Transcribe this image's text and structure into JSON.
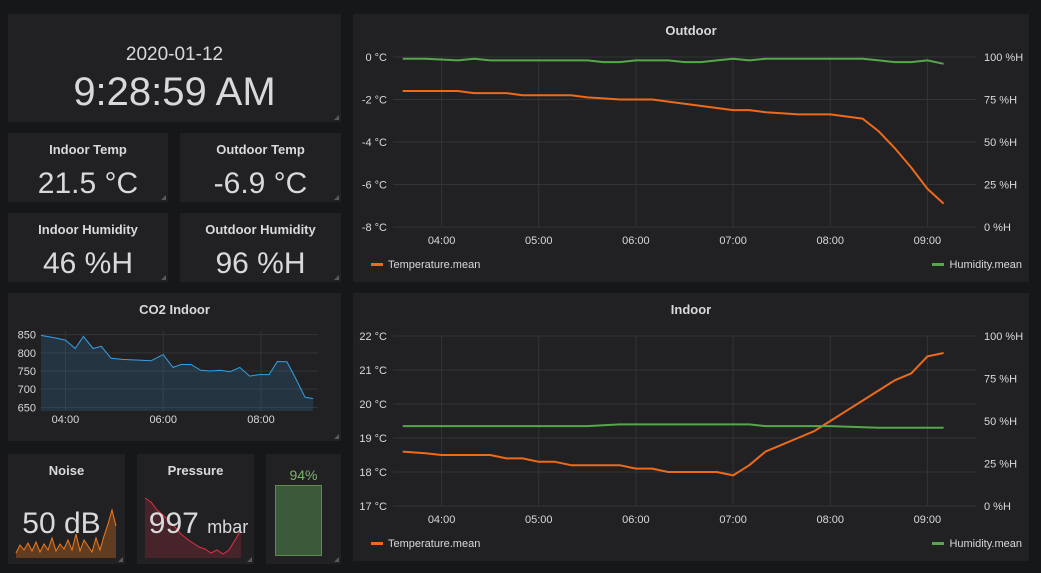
{
  "clock": {
    "date": "2020-01-12",
    "time": "9:28:59 AM"
  },
  "stats": {
    "indoor_temp": {
      "title": "Indoor Temp",
      "value": "21.5 °C"
    },
    "outdoor_temp": {
      "title": "Outdoor Temp",
      "value": "-6.9 °C"
    },
    "indoor_humidity": {
      "title": "Indoor Humidity",
      "value": "46 %H"
    },
    "outdoor_humidity": {
      "title": "Outdoor Humidity",
      "value": "96 %H"
    },
    "noise": {
      "title": "Noise",
      "value": "50 dB"
    },
    "pressure": {
      "title": "Pressure",
      "value": "997",
      "unit": "mbar"
    },
    "gauge": {
      "value": "94%",
      "fraction": 0.94
    }
  },
  "colors": {
    "background": "#161719",
    "panel": "#212124",
    "temperature": "#ed6a1a",
    "humidity": "#56a64b",
    "co2": "#33a2e5",
    "noise": "#f2791a",
    "pressure": "#e02f44",
    "gauge": "#7eb26d"
  },
  "chart_data": [
    {
      "type": "line",
      "title": "Outdoor",
      "x_ticks": [
        "04:00",
        "05:00",
        "06:00",
        "07:00",
        "08:00",
        "09:00"
      ],
      "x_range": [
        "03:30",
        "09:30"
      ],
      "left_axis": {
        "ticks": [
          "0 °C",
          "-2 °C",
          "-4 °C",
          "-6 °C",
          "-8 °C"
        ],
        "range": [
          -8,
          0
        ]
      },
      "right_axis": {
        "ticks": [
          "100 %H",
          "75 %H",
          "50 %H",
          "25 %H",
          "0 %H"
        ],
        "range": [
          0,
          100
        ]
      },
      "legend": {
        "left": "Temperature.mean",
        "right": "Humidity.mean"
      },
      "grid": true,
      "series": [
        {
          "name": "Temperature.mean",
          "axis": "left",
          "x": [
            "03:36",
            "03:50",
            "04:10",
            "04:20",
            "04:30",
            "04:40",
            "04:50",
            "05:00",
            "05:10",
            "05:20",
            "05:30",
            "05:40",
            "05:50",
            "06:00",
            "06:10",
            "06:20",
            "06:30",
            "06:40",
            "06:50",
            "07:00",
            "07:10",
            "07:20",
            "07:30",
            "07:40",
            "07:50",
            "08:00",
            "08:10",
            "08:20",
            "08:30",
            "08:40",
            "08:50",
            "09:00",
            "09:10"
          ],
          "values": [
            -1.6,
            -1.6,
            -1.6,
            -1.7,
            -1.7,
            -1.7,
            -1.8,
            -1.8,
            -1.8,
            -1.8,
            -1.9,
            -1.95,
            -2.0,
            -2.0,
            -2.0,
            -2.1,
            -2.2,
            -2.3,
            -2.4,
            -2.5,
            -2.5,
            -2.6,
            -2.65,
            -2.7,
            -2.7,
            -2.7,
            -2.8,
            -2.9,
            -3.5,
            -4.3,
            -5.2,
            -6.2,
            -6.9
          ]
        },
        {
          "name": "Humidity.mean",
          "axis": "right",
          "x": [
            "03:36",
            "03:50",
            "04:10",
            "04:20",
            "04:30",
            "04:40",
            "04:50",
            "05:00",
            "05:10",
            "05:20",
            "05:30",
            "05:40",
            "05:50",
            "06:00",
            "06:10",
            "06:20",
            "06:30",
            "06:40",
            "06:50",
            "07:00",
            "07:10",
            "07:20",
            "07:30",
            "07:40",
            "07:50",
            "08:00",
            "08:10",
            "08:20",
            "08:30",
            "08:40",
            "08:50",
            "09:00",
            "09:10"
          ],
          "values": [
            99,
            99,
            98,
            99,
            98,
            98,
            98,
            98,
            98,
            98,
            98,
            97,
            97,
            98,
            98,
            98,
            97,
            97,
            98,
            99,
            98,
            99,
            99,
            99,
            99,
            99,
            99,
            99,
            98,
            97,
            97,
            98,
            96
          ]
        }
      ]
    },
    {
      "type": "line",
      "title": "Indoor",
      "x_ticks": [
        "04:00",
        "05:00",
        "06:00",
        "07:00",
        "08:00",
        "09:00"
      ],
      "x_range": [
        "03:30",
        "09:30"
      ],
      "left_axis": {
        "ticks": [
          "22 °C",
          "21 °C",
          "20 °C",
          "19 °C",
          "18 °C",
          "17 °C"
        ],
        "range": [
          17,
          22
        ]
      },
      "right_axis": {
        "ticks": [
          "100 %H",
          "75 %H",
          "50 %H",
          "25 %H",
          "0 %H"
        ],
        "range": [
          0,
          100
        ]
      },
      "legend": {
        "left": "Temperature.mean",
        "right": "Humidity.mean"
      },
      "grid": true,
      "series": [
        {
          "name": "Temperature.mean",
          "axis": "left",
          "x": [
            "03:36",
            "03:50",
            "04:00",
            "04:10",
            "04:20",
            "04:30",
            "04:40",
            "04:50",
            "05:00",
            "05:10",
            "05:20",
            "05:30",
            "05:40",
            "05:50",
            "06:00",
            "06:10",
            "06:20",
            "06:30",
            "06:40",
            "06:50",
            "07:00",
            "07:05",
            "07:10",
            "07:20",
            "07:30",
            "07:40",
            "07:50",
            "08:00",
            "08:10",
            "08:20",
            "08:30",
            "08:40",
            "08:50",
            "09:00",
            "09:10"
          ],
          "values": [
            18.6,
            18.55,
            18.5,
            18.5,
            18.5,
            18.5,
            18.4,
            18.4,
            18.3,
            18.3,
            18.2,
            18.2,
            18.2,
            18.2,
            18.1,
            18.1,
            18.0,
            18.0,
            18.0,
            18.0,
            17.9,
            18.05,
            18.2,
            18.6,
            18.8,
            19.0,
            19.2,
            19.5,
            19.8,
            20.1,
            20.4,
            20.7,
            20.9,
            21.4,
            21.5
          ]
        },
        {
          "name": "Humidity.mean",
          "axis": "right",
          "x": [
            "03:36",
            "04:00",
            "04:30",
            "05:00",
            "05:30",
            "05:50",
            "06:00",
            "06:30",
            "07:00",
            "07:10",
            "07:20",
            "07:30",
            "08:00",
            "08:30",
            "09:00",
            "09:10"
          ],
          "values": [
            47,
            47,
            47,
            47,
            47,
            48,
            48,
            48,
            48,
            48,
            47,
            47,
            47,
            46,
            46,
            46
          ]
        }
      ]
    },
    {
      "type": "area",
      "title": "CO2 Indoor",
      "x_ticks": [
        "04:00",
        "06:00",
        "08:00"
      ],
      "x_range": [
        "03:30",
        "09:10"
      ],
      "y_axis": {
        "ticks": [
          "850",
          "800",
          "750",
          "700",
          "650"
        ],
        "range": [
          640,
          860
        ]
      },
      "grid": true,
      "series": [
        {
          "name": "",
          "x": [
            "03:30",
            "03:45",
            "04:00",
            "04:12",
            "04:22",
            "04:34",
            "04:44",
            "04:56",
            "05:10",
            "05:30",
            "05:45",
            "06:00",
            "06:12",
            "06:22",
            "06:34",
            "06:46",
            "06:58",
            "07:10",
            "07:22",
            "07:34",
            "07:46",
            "07:58",
            "08:10",
            "08:20",
            "08:32",
            "08:42",
            "08:54",
            "09:04"
          ],
          "values": [
            848,
            842,
            835,
            812,
            845,
            812,
            818,
            785,
            782,
            780,
            778,
            795,
            760,
            768,
            768,
            752,
            750,
            752,
            748,
            760,
            736,
            740,
            740,
            776,
            775,
            732,
            678,
            674
          ]
        }
      ]
    }
  ]
}
